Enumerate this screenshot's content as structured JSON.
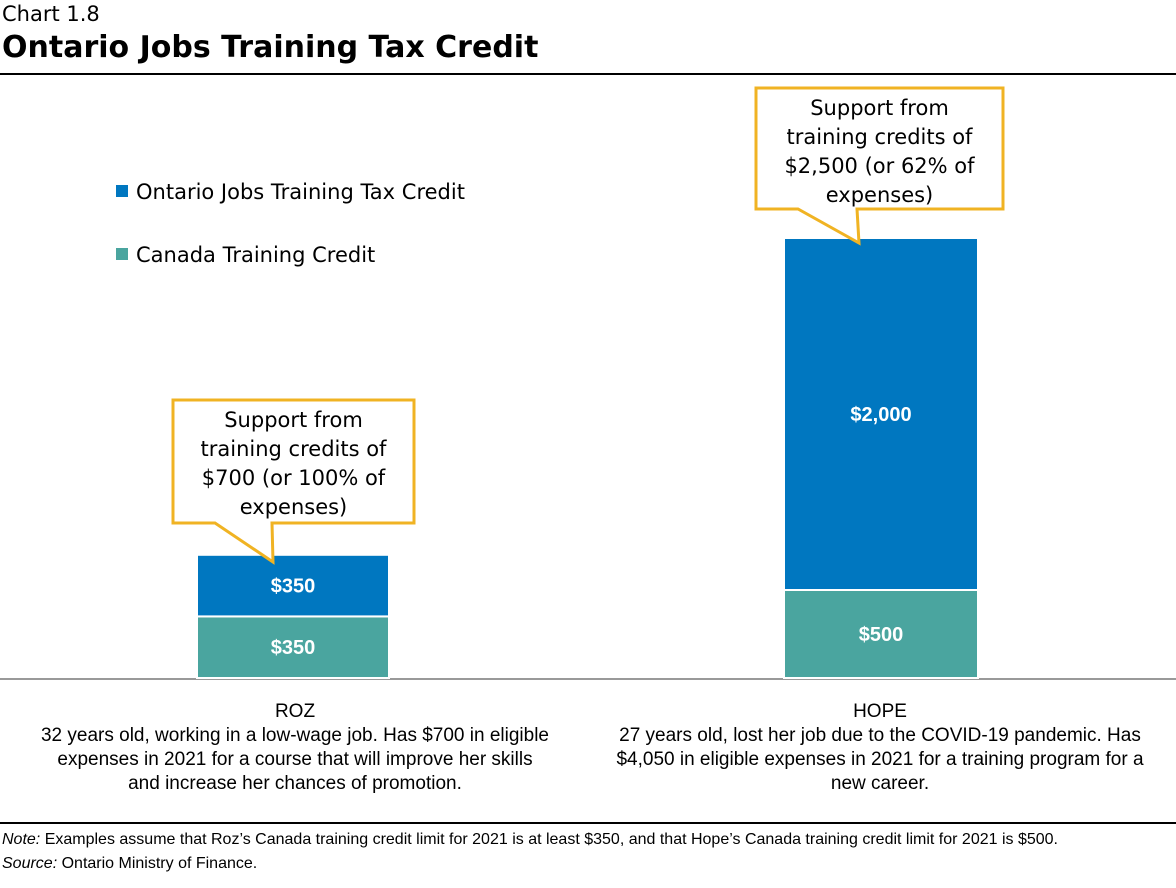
{
  "chart_data": {
    "type": "bar",
    "stacked": true,
    "label": "Chart 1.8",
    "title": "Ontario Jobs Training Tax Credit",
    "categories": [
      "ROZ",
      "HOPE"
    ],
    "category_descriptions": [
      "32 years old, working in a low-wage job. Has $700 in eligible expenses in 2021 for a course that will improve her skills and increase her chances of promotion.",
      "27 years old, lost her job due to the COVID-19 pandemic. Has $4,050 in eligible expenses in 2021 for a training program for a new career."
    ],
    "series": [
      {
        "name": "Canada Training Credit",
        "values": [
          350,
          500
        ],
        "labels": [
          "$350",
          "$500"
        ],
        "color": "#4aa59f"
      },
      {
        "name": "Ontario Jobs Training Tax Credit",
        "values": [
          350,
          2000
        ],
        "labels": [
          "$350",
          "$2,000"
        ],
        "color": "#0077c0"
      }
    ],
    "legend_order": [
      1,
      0
    ],
    "legend_position": "top-left",
    "annotations": [
      "Support from training credits of $700 (or 100% of expenses)",
      "Support from training credits of $2,500 (or 62% of expenses)"
    ],
    "annotation_border_color": "#f0b323",
    "grid": false,
    "note_label": "Note:",
    "note": "Examples assume that Roz’s Canada training credit limit for 2021 is at least $350, and that Hope’s Canada training credit limit for 2021 is $500.",
    "source_label": "Source:",
    "source": "Ontario Ministry of Finance."
  }
}
